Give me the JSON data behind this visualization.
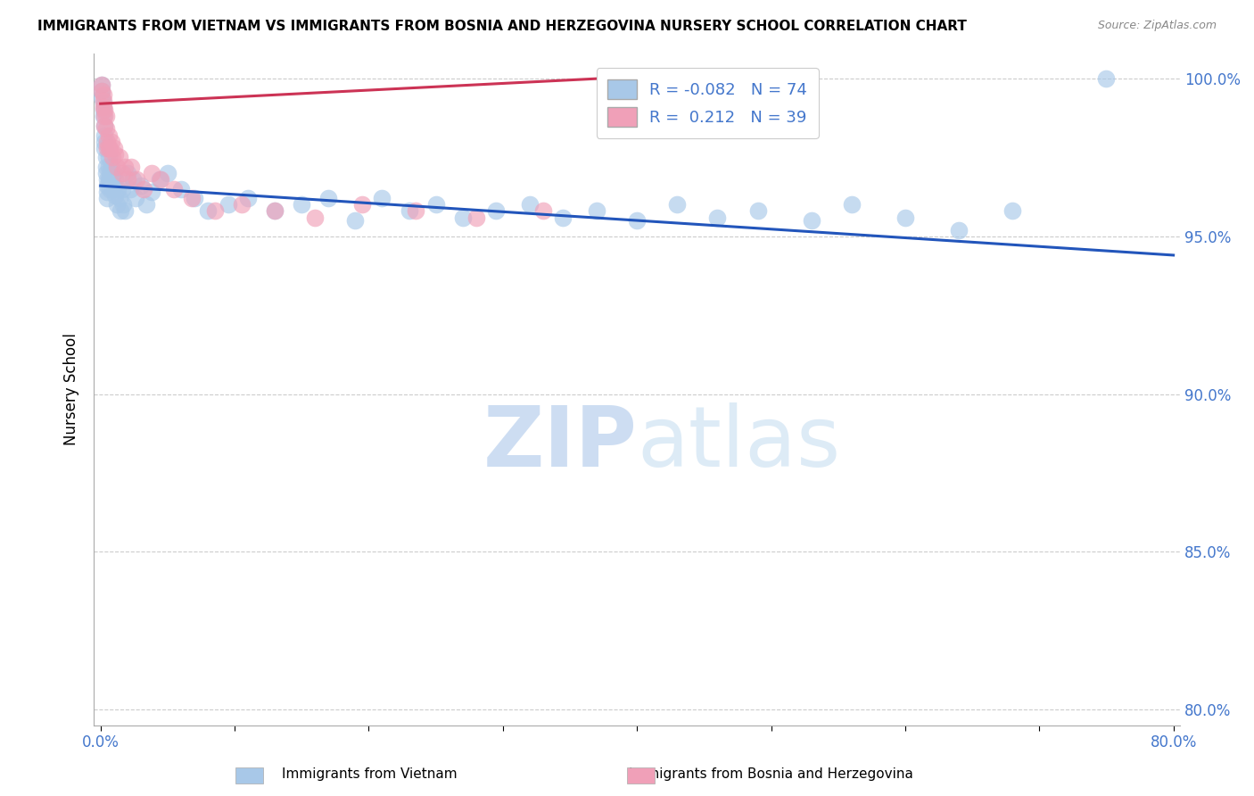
{
  "title": "IMMIGRANTS FROM VIETNAM VS IMMIGRANTS FROM BOSNIA AND HERZEGOVINA NURSERY SCHOOL CORRELATION CHART",
  "source": "Source: ZipAtlas.com",
  "ylabel": "Nursery School",
  "ylim": [
    0.795,
    1.008
  ],
  "xlim": [
    -0.005,
    0.805
  ],
  "yticks": [
    0.8,
    0.85,
    0.9,
    0.95,
    1.0
  ],
  "ytick_labels": [
    "80.0%",
    "85.0%",
    "90.0%",
    "95.0%",
    "100.0%"
  ],
  "color_vietnam": "#a8c8e8",
  "color_bosnia": "#f0a0b8",
  "color_line_vietnam": "#2255bb",
  "color_line_bosnia": "#cc3355",
  "watermark_zip": "ZIP",
  "watermark_atlas": "atlas",
  "background_color": "#ffffff",
  "grid_color": "#cccccc",
  "vietnam_x": [
    0.001,
    0.001,
    0.001,
    0.002,
    0.002,
    0.002,
    0.003,
    0.003,
    0.003,
    0.003,
    0.004,
    0.004,
    0.004,
    0.005,
    0.005,
    0.005,
    0.005,
    0.006,
    0.006,
    0.006,
    0.007,
    0.007,
    0.007,
    0.008,
    0.008,
    0.009,
    0.009,
    0.01,
    0.01,
    0.011,
    0.011,
    0.012,
    0.013,
    0.014,
    0.015,
    0.016,
    0.017,
    0.018,
    0.02,
    0.022,
    0.024,
    0.026,
    0.03,
    0.034,
    0.038,
    0.044,
    0.05,
    0.06,
    0.07,
    0.08,
    0.095,
    0.11,
    0.13,
    0.15,
    0.17,
    0.19,
    0.21,
    0.23,
    0.25,
    0.27,
    0.295,
    0.32,
    0.345,
    0.37,
    0.4,
    0.43,
    0.46,
    0.49,
    0.53,
    0.56,
    0.6,
    0.64,
    0.68,
    0.75
  ],
  "vietnam_y": [
    0.998,
    0.996,
    0.994,
    0.992,
    0.99,
    0.988,
    0.985,
    0.982,
    0.98,
    0.978,
    0.975,
    0.972,
    0.97,
    0.968,
    0.966,
    0.964,
    0.962,
    0.975,
    0.972,
    0.968,
    0.97,
    0.968,
    0.965,
    0.972,
    0.969,
    0.968,
    0.965,
    0.97,
    0.966,
    0.968,
    0.963,
    0.96,
    0.965,
    0.962,
    0.958,
    0.965,
    0.96,
    0.958,
    0.97,
    0.965,
    0.968,
    0.962,
    0.966,
    0.96,
    0.964,
    0.968,
    0.97,
    0.965,
    0.962,
    0.958,
    0.96,
    0.962,
    0.958,
    0.96,
    0.962,
    0.955,
    0.962,
    0.958,
    0.96,
    0.956,
    0.958,
    0.96,
    0.956,
    0.958,
    0.955,
    0.96,
    0.956,
    0.958,
    0.955,
    0.96,
    0.956,
    0.952,
    0.958,
    1.0
  ],
  "bosnia_x": [
    0.001,
    0.001,
    0.002,
    0.002,
    0.002,
    0.003,
    0.003,
    0.003,
    0.004,
    0.004,
    0.005,
    0.005,
    0.006,
    0.006,
    0.007,
    0.008,
    0.009,
    0.01,
    0.011,
    0.012,
    0.014,
    0.016,
    0.018,
    0.02,
    0.023,
    0.027,
    0.032,
    0.038,
    0.045,
    0.055,
    0.068,
    0.085,
    0.105,
    0.13,
    0.16,
    0.195,
    0.235,
    0.28,
    0.33
  ],
  "bosnia_y": [
    0.998,
    0.996,
    0.995,
    0.993,
    0.991,
    0.99,
    0.988,
    0.985,
    0.988,
    0.984,
    0.98,
    0.978,
    0.982,
    0.978,
    0.978,
    0.98,
    0.975,
    0.978,
    0.976,
    0.972,
    0.975,
    0.97,
    0.972,
    0.968,
    0.972,
    0.968,
    0.965,
    0.97,
    0.968,
    0.965,
    0.962,
    0.958,
    0.96,
    0.958,
    0.956,
    0.96,
    0.958,
    0.956,
    0.958
  ],
  "line_vietnam_x0": 0.0,
  "line_vietnam_x1": 0.8,
  "line_vietnam_y0": 0.966,
  "line_vietnam_y1": 0.944,
  "line_bosnia_x0": 0.0,
  "line_bosnia_x1": 0.42,
  "line_bosnia_y0": 0.992,
  "line_bosnia_y1": 1.001
}
